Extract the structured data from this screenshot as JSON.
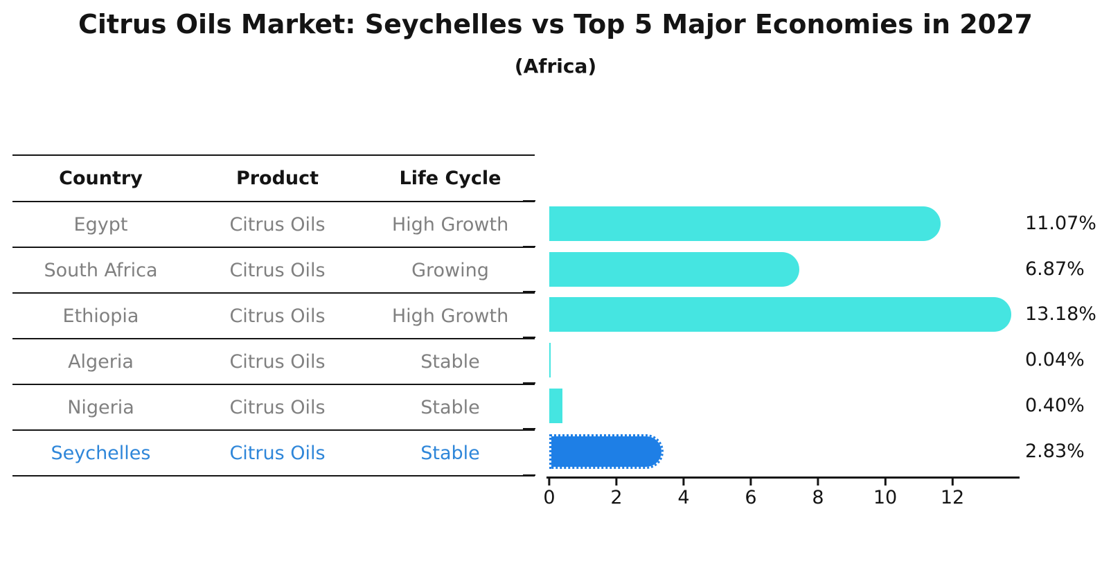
{
  "chart_data": {
    "type": "bar",
    "orientation": "horizontal",
    "title": "Citrus Oils Market: Seychelles vs Top 5 Major Economies in 2027",
    "subtitle": "(Africa)",
    "categories": [
      "Egypt",
      "South Africa",
      "Ethiopia",
      "Algeria",
      "Nigeria",
      "Seychelles"
    ],
    "values": [
      11.07,
      6.87,
      13.18,
      0.04,
      0.4,
      2.83
    ],
    "value_labels": [
      "11.07%",
      "6.87%",
      "13.18%",
      "0.04%",
      "0.40%",
      "2.83%"
    ],
    "x_ticks": [
      "0",
      "2",
      "4",
      "6",
      "8",
      "10",
      "12"
    ],
    "xlim": [
      0,
      14
    ],
    "grid": false,
    "legend": false,
    "highlight_category": "Seychelles",
    "bar_color": "#45E5E1",
    "highlight_bar_color": "#1E7FE6",
    "label_color": "#141414",
    "table_text_color": "#808080",
    "highlight_text_color": "#2E86D9"
  },
  "table": {
    "headers": [
      "Country",
      "Product",
      "Life Cycle"
    ],
    "rows": [
      {
        "country": "Egypt",
        "product": "Citrus Oils",
        "life_cycle": "High Growth"
      },
      {
        "country": "South Africa",
        "product": "Citrus Oils",
        "life_cycle": "Growing"
      },
      {
        "country": "Ethiopia",
        "product": "Citrus Oils",
        "life_cycle": "High Growth"
      },
      {
        "country": "Algeria",
        "product": "Citrus Oils",
        "life_cycle": "Stable"
      },
      {
        "country": "Nigeria",
        "product": "Citrus Oils",
        "life_cycle": "Stable"
      },
      {
        "country": "Seychelles",
        "product": "Citrus Oils",
        "life_cycle": "Stable"
      }
    ]
  }
}
